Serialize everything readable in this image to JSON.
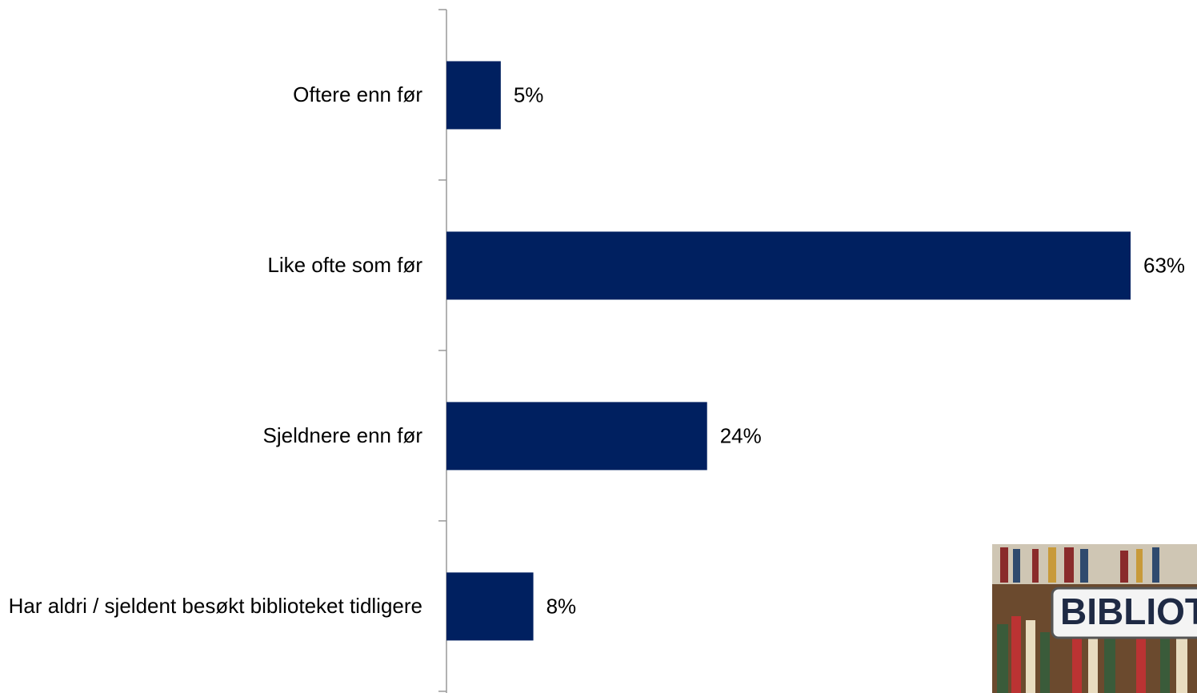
{
  "chart_data": {
    "type": "barh",
    "categories": [
      "Oftere enn før",
      "Like ofte som før",
      "Sjeldnere enn før",
      "Har aldri / sjeldent besøkt biblioteket tidligere"
    ],
    "values": [
      5,
      63,
      24,
      8
    ],
    "value_labels": [
      "5%",
      "63%",
      "24%",
      "8%"
    ],
    "color": "#002060"
  },
  "image_text": "BIBLIOT"
}
